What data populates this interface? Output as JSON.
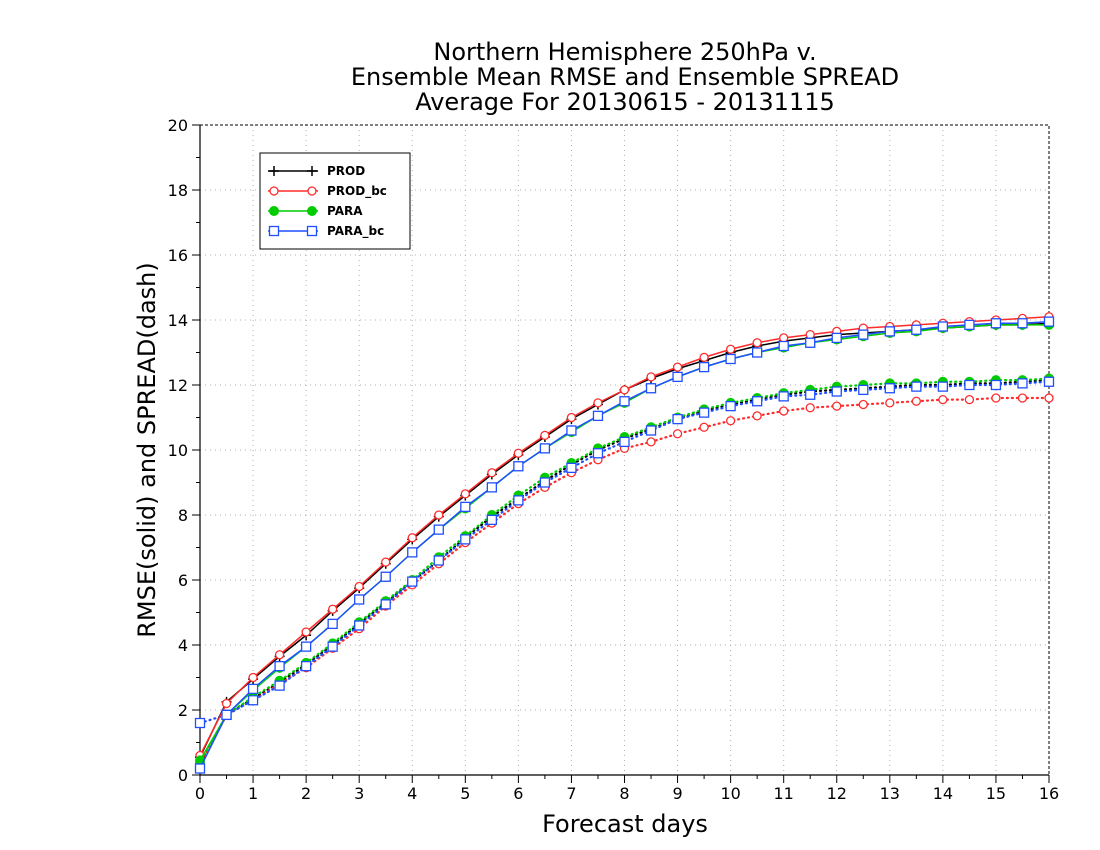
{
  "chart_data": {
    "type": "line",
    "title_lines": [
      "Northern Hemisphere 250hPa v.",
      "Ensemble Mean RMSE and Ensemble SPREAD",
      "Average For 20130615 - 20131115"
    ],
    "xlabel": "Forecast days",
    "ylabel": "RMSE(solid) and SPREAD(dash)",
    "xlim": [
      0,
      16
    ],
    "ylim": [
      0,
      20
    ],
    "x_ticks": [
      0,
      1,
      2,
      3,
      4,
      5,
      6,
      7,
      8,
      9,
      10,
      11,
      12,
      13,
      14,
      15,
      16
    ],
    "y_ticks": [
      0,
      2,
      4,
      6,
      8,
      10,
      12,
      14,
      16,
      18,
      20
    ],
    "grid": true,
    "legend_position": "top-left",
    "x": [
      0,
      0.5,
      1,
      1.5,
      2,
      2.5,
      3,
      3.5,
      4,
      4.5,
      5,
      5.5,
      6,
      6.5,
      7,
      7.5,
      8,
      8.5,
      9,
      9.5,
      10,
      10.5,
      11,
      11.5,
      12,
      12.5,
      13,
      13.5,
      14,
      14.5,
      15,
      15.5,
      16
    ],
    "series": [
      {
        "name": "PROD",
        "color": "#000000",
        "marker": "plus",
        "rmse": [
          0.55,
          2.25,
          2.95,
          3.65,
          4.3,
          5.05,
          5.75,
          6.5,
          7.25,
          7.95,
          8.6,
          9.25,
          9.85,
          10.4,
          10.95,
          11.4,
          11.85,
          12.2,
          12.5,
          12.75,
          13.0,
          13.2,
          13.35,
          13.45,
          13.55,
          13.6,
          13.65,
          13.7,
          13.75,
          13.8,
          13.85,
          13.85,
          13.9
        ],
        "spread": [
          0.3,
          1.85,
          2.35,
          2.85,
          3.4,
          4.0,
          4.65,
          5.3,
          5.95,
          6.6,
          7.3,
          7.95,
          8.5,
          9.05,
          9.55,
          10.0,
          10.35,
          10.65,
          10.95,
          11.2,
          11.4,
          11.55,
          11.7,
          11.8,
          11.85,
          11.9,
          11.95,
          12.0,
          12.0,
          12.05,
          12.05,
          12.1,
          12.15
        ]
      },
      {
        "name": "PROD_bc",
        "color": "#ff2a2a",
        "marker": "circle-open",
        "rmse": [
          0.6,
          2.2,
          3.0,
          3.7,
          4.4,
          5.1,
          5.8,
          6.55,
          7.3,
          8.0,
          8.65,
          9.3,
          9.9,
          10.45,
          11.0,
          11.45,
          11.85,
          12.25,
          12.55,
          12.85,
          13.1,
          13.3,
          13.45,
          13.55,
          13.65,
          13.75,
          13.8,
          13.85,
          13.9,
          13.95,
          14.0,
          14.05,
          14.1
        ],
        "spread": [
          0.3,
          1.85,
          2.3,
          2.8,
          3.3,
          3.9,
          4.5,
          5.2,
          5.85,
          6.5,
          7.15,
          7.75,
          8.35,
          8.85,
          9.3,
          9.7,
          10.05,
          10.25,
          10.5,
          10.7,
          10.9,
          11.05,
          11.2,
          11.3,
          11.35,
          11.4,
          11.45,
          11.5,
          11.55,
          11.55,
          11.6,
          11.6,
          11.6
        ]
      },
      {
        "name": "PARA",
        "color": "#00cc00",
        "marker": "circle-filled",
        "rmse": [
          0.45,
          1.85,
          2.6,
          3.3,
          3.95,
          4.65,
          5.4,
          6.1,
          6.85,
          7.55,
          8.2,
          8.85,
          9.5,
          10.05,
          10.55,
          11.05,
          11.45,
          11.9,
          12.25,
          12.55,
          12.8,
          13.0,
          13.15,
          13.3,
          13.4,
          13.5,
          13.6,
          13.65,
          13.75,
          13.8,
          13.85,
          13.85,
          13.85
        ],
        "spread": [
          0.35,
          1.85,
          2.4,
          2.9,
          3.45,
          4.05,
          4.7,
          5.35,
          6.0,
          6.7,
          7.35,
          8.0,
          8.6,
          9.15,
          9.6,
          10.05,
          10.4,
          10.7,
          11.0,
          11.25,
          11.45,
          11.6,
          11.75,
          11.85,
          11.95,
          12.0,
          12.05,
          12.05,
          12.1,
          12.1,
          12.15,
          12.15,
          12.2
        ]
      },
      {
        "name": "PARA_bc",
        "color": "#1f4fff",
        "marker": "square-open",
        "rmse": [
          0.2,
          1.85,
          2.65,
          3.35,
          3.95,
          4.65,
          5.4,
          6.1,
          6.85,
          7.55,
          8.25,
          8.85,
          9.5,
          10.05,
          10.6,
          11.05,
          11.5,
          11.9,
          12.25,
          12.55,
          12.8,
          13.0,
          13.2,
          13.3,
          13.45,
          13.55,
          13.65,
          13.7,
          13.8,
          13.85,
          13.9,
          13.9,
          13.95
        ],
        "spread": [
          1.6,
          1.85,
          2.3,
          2.75,
          3.35,
          3.95,
          4.6,
          5.25,
          5.95,
          6.6,
          7.25,
          7.85,
          8.45,
          9.0,
          9.45,
          9.9,
          10.25,
          10.6,
          10.95,
          11.15,
          11.35,
          11.5,
          11.65,
          11.7,
          11.8,
          11.85,
          11.9,
          11.95,
          11.95,
          12.0,
          12.0,
          12.05,
          12.1
        ]
      }
    ]
  }
}
